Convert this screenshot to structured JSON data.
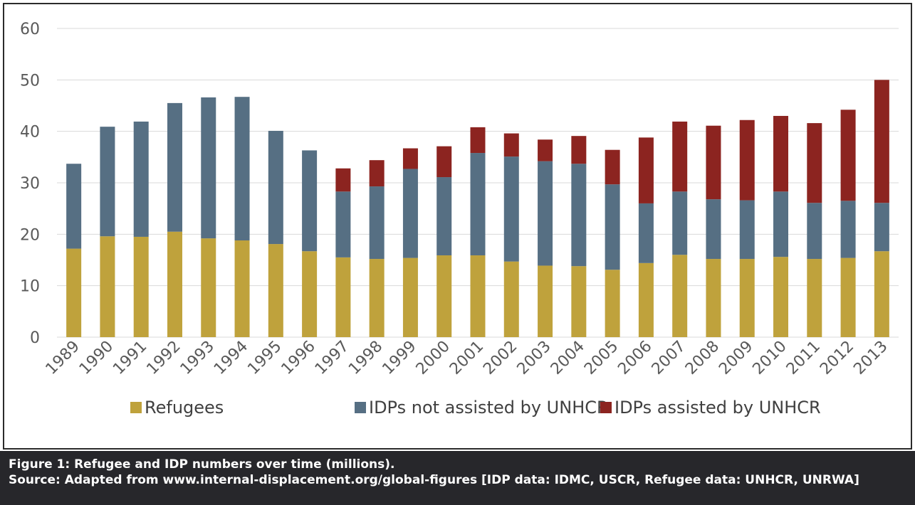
{
  "chart_data": {
    "type": "bar",
    "stacked": true,
    "categories": [
      "1989",
      "1990",
      "1991",
      "1992",
      "1993",
      "1994",
      "1995",
      "1996",
      "1997",
      "1998",
      "1999",
      "2000",
      "2001",
      "2002",
      "2003",
      "2004",
      "2005",
      "2006",
      "2007",
      "2008",
      "2009",
      "2010",
      "2011",
      "2012",
      "2013"
    ],
    "series": [
      {
        "name": "Refugees",
        "color": "#bfa23c",
        "values": [
          17.2,
          19.6,
          19.5,
          20.5,
          19.2,
          18.8,
          18.1,
          16.7,
          15.5,
          15.2,
          15.4,
          15.9,
          15.9,
          14.7,
          13.9,
          13.8,
          13.1,
          14.4,
          16.0,
          15.2,
          15.2,
          15.6,
          15.2,
          15.4,
          16.7
        ]
      },
      {
        "name": "IDPs not assisted by UNHCR",
        "color": "#566f83",
        "values": [
          16.5,
          21.3,
          22.4,
          25.0,
          27.4,
          27.9,
          22.0,
          19.6,
          12.8,
          14.1,
          17.3,
          15.2,
          19.9,
          20.4,
          20.3,
          19.9,
          16.6,
          11.6,
          12.3,
          11.6,
          11.4,
          12.7,
          10.9,
          11.1,
          9.4
        ]
      },
      {
        "name": "IDPs assisted by UNHCR",
        "color": "#8c2420",
        "values": [
          0,
          0,
          0,
          0,
          0,
          0,
          0,
          0,
          4.5,
          5.1,
          4.0,
          6.0,
          5.0,
          4.5,
          4.2,
          5.4,
          6.7,
          12.8,
          13.6,
          14.3,
          15.6,
          14.7,
          15.5,
          17.7,
          23.9
        ]
      }
    ],
    "ylim": [
      0,
      60
    ],
    "yticks": [
      0,
      10,
      20,
      30,
      40,
      50,
      60
    ],
    "grid": true,
    "legend_position": "bottom"
  },
  "caption": {
    "line1": "Figure 1: Refugee and IDP numbers over time (millions).",
    "line2": "Source: Adapted from www.internal-displacement.org/global-figures [IDP data: IDMC, USCR, Refugee data: UNHCR, UNRWA]"
  }
}
